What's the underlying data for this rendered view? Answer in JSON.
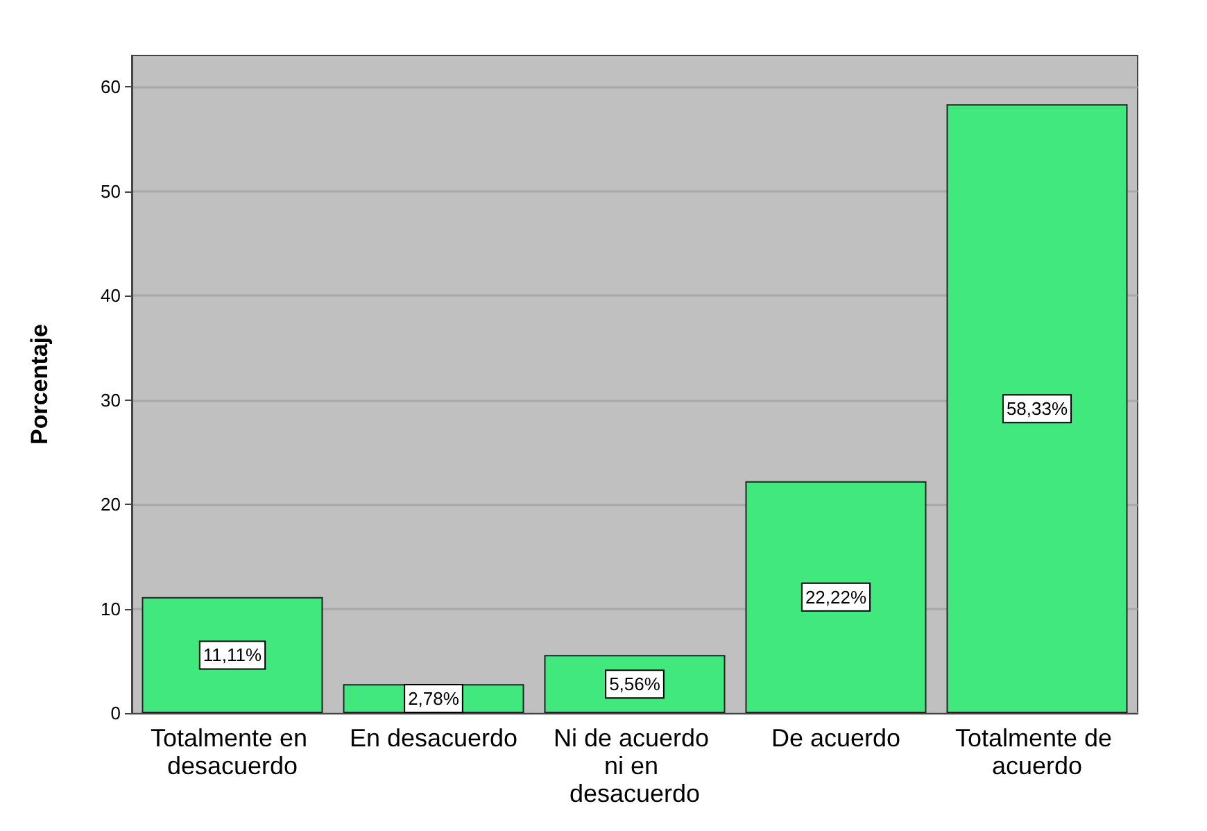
{
  "chart_data": {
    "type": "bar",
    "ylabel": "Porcentaje",
    "categories": [
      "Totalmente en desacuerdo",
      "En desacuerdo",
      "Ni de acuerdo ni en desacuerdo",
      "De acuerdo",
      "Totalmente de acuerdo"
    ],
    "values": [
      11.11,
      2.78,
      5.56,
      22.22,
      58.33
    ],
    "value_labels": [
      "11,11%",
      "2,78%",
      "5,56%",
      "22,22%",
      "58,33%"
    ],
    "color": "#40e87e",
    "ylim": [
      0,
      63
    ],
    "yticks": [
      0,
      10,
      20,
      30,
      40,
      50,
      60
    ],
    "grid": "y"
  }
}
